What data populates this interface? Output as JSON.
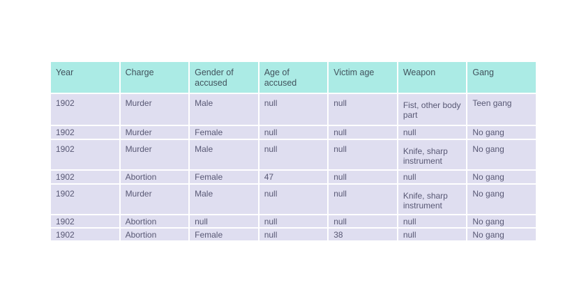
{
  "table": {
    "columns": [
      "Year",
      "Charge",
      "Gender of accused",
      "Age of accused",
      "Victim age",
      "Weapon",
      "Gang"
    ],
    "rows": [
      [
        "1902",
        "Murder",
        "Male",
        "null",
        "null",
        "Fist, other body part",
        "Teen gang"
      ],
      [
        "1902",
        "Murder",
        "Female",
        "null",
        "null",
        "null",
        "No gang"
      ],
      [
        "1902",
        "Murder",
        "Male",
        "null",
        "null",
        "Knife, sharp instrument",
        "No gang"
      ],
      [
        "1902",
        "Abortion",
        "Female",
        "47",
        "null",
        "null",
        "No gang"
      ],
      [
        "1902",
        "Murder",
        "Male",
        "null",
        "null",
        "Knife, sharp instrument",
        "No gang"
      ],
      [
        "1902",
        "Abortion",
        "null",
        "null",
        "null",
        "null",
        "No gang"
      ],
      [
        "1902",
        "Abortion",
        "Female",
        "null",
        "38",
        "null",
        "No gang"
      ]
    ],
    "colors": {
      "header_bg": "#abebe5",
      "header_text": "#41525c",
      "row_bg": "#dfdef0",
      "row_text": "#585874",
      "page_bg": "#ffffff"
    }
  }
}
